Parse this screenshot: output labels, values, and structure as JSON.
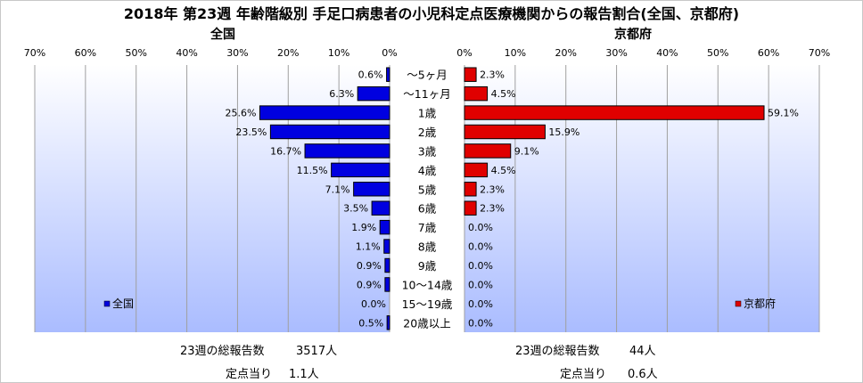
{
  "title": "2018年 第23週 年齢階級別 手足口病患者の小児科定点医療機関からの報告割合(全国、京都府)",
  "chart_data": [
    {
      "type": "bar",
      "orientation": "horizontal",
      "direction": "right-to-left",
      "subtitle": "全国",
      "legend": "全国",
      "legend_position": "bottom-left",
      "xlim": [
        0,
        70
      ],
      "xticks": [
        "70%",
        "60%",
        "50%",
        "40%",
        "30%",
        "20%",
        "10%",
        "0%"
      ],
      "categories": [
        "～5ヶ月",
        "～11ヶ月",
        "1歳",
        "2歳",
        "3歳",
        "4歳",
        "5歳",
        "6歳",
        "7歳",
        "8歳",
        "9歳",
        "10～14歳",
        "15～19歳",
        "20歳以上"
      ],
      "values": [
        0.6,
        6.3,
        25.6,
        23.5,
        16.7,
        11.5,
        7.1,
        3.5,
        1.9,
        1.1,
        0.9,
        0.9,
        0.0,
        0.5
      ],
      "labels": [
        "0.6%",
        "6.3%",
        "25.6%",
        "23.5%",
        "16.7%",
        "11.5%",
        "7.1%",
        "3.5%",
        "1.9%",
        "1.1%",
        "0.9%",
        "0.9%",
        "0.0%",
        "0.5%"
      ],
      "bar_color": "#0000e0",
      "grid": true
    },
    {
      "type": "bar",
      "orientation": "horizontal",
      "direction": "left-to-right",
      "subtitle": "京都府",
      "legend": "京都府",
      "legend_position": "bottom-right",
      "xlim": [
        0,
        70
      ],
      "xticks": [
        "0%",
        "10%",
        "20%",
        "30%",
        "40%",
        "50%",
        "60%",
        "70%"
      ],
      "categories": [
        "～5ヶ月",
        "～11ヶ月",
        "1歳",
        "2歳",
        "3歳",
        "4歳",
        "5歳",
        "6歳",
        "7歳",
        "8歳",
        "9歳",
        "10～14歳",
        "15～19歳",
        "20歳以上"
      ],
      "values": [
        2.3,
        4.5,
        59.1,
        15.9,
        9.1,
        4.5,
        2.3,
        2.3,
        0.0,
        0.0,
        0.0,
        0.0,
        0.0,
        0.0
      ],
      "labels": [
        "2.3%",
        "4.5%",
        "59.1%",
        "15.9%",
        "9.1%",
        "4.5%",
        "2.3%",
        "2.3%",
        "0.0%",
        "0.0%",
        "0.0%",
        "0.0%",
        "0.0%",
        "0.0%"
      ],
      "bar_color": "#e00000",
      "grid": true
    }
  ],
  "footer": {
    "national": {
      "total_label": "23週の総報告数",
      "total_value": "3517人",
      "per_label": "定点当り",
      "per_value": "1.1人"
    },
    "kyoto": {
      "total_label": "23週の総報告数",
      "total_value": "44人",
      "per_label": "定点当り",
      "per_value": "0.6人"
    }
  },
  "colors": {
    "plot_background_top": "#ffffff",
    "plot_background_bottom": "#aabcff",
    "gridline": "#a0a0a0"
  }
}
